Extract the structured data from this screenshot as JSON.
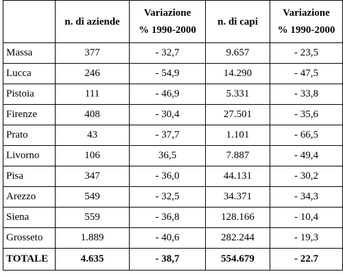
{
  "table": {
    "headers": [
      "",
      "n. di aziende",
      "Variazione",
      "% 1990-2000",
      "n. di capi",
      "Variazione",
      "% 1990-2000"
    ],
    "columns": [
      {
        "label": ""
      },
      {
        "label": "n. di aziende"
      },
      {
        "label_line1": "Variazione",
        "label_line2": "% 1990-2000"
      },
      {
        "label": "n. di capi"
      },
      {
        "label_line1": "Variazione",
        "label_line2": "% 1990-2000"
      }
    ],
    "rows": [
      [
        "Massa",
        "377",
        "- 32,7",
        "9.657",
        "- 23,5"
      ],
      [
        "Lucca",
        "246",
        "- 54,9",
        "14.290",
        "- 47,5"
      ],
      [
        "Pistoia",
        "111",
        "- 46,9",
        "5.331",
        "- 33,8"
      ],
      [
        "Firenze",
        "408",
        "- 30,4",
        "27.501",
        "- 35,6"
      ],
      [
        "Prato",
        "43",
        "- 37,7",
        "1.101",
        "- 66,5"
      ],
      [
        "Livorno",
        "106",
        "36,5",
        "7.887",
        "- 49,4"
      ],
      [
        "Pisa",
        "347",
        "- 36,0",
        "44.131",
        "- 30,2"
      ],
      [
        "Arezzo",
        "549",
        "- 32,5",
        "34.371",
        "- 34,3"
      ],
      [
        "Siena",
        "559",
        "- 36,8",
        "128.166",
        "- 10,4"
      ],
      [
        "Grosseto",
        "1.889",
        "- 40,6",
        "282.244",
        "- 19,3"
      ]
    ],
    "total": [
      "TOTALE",
      "4.635",
      "- 38,7",
      "554.679",
      "- 22.7"
    ]
  }
}
